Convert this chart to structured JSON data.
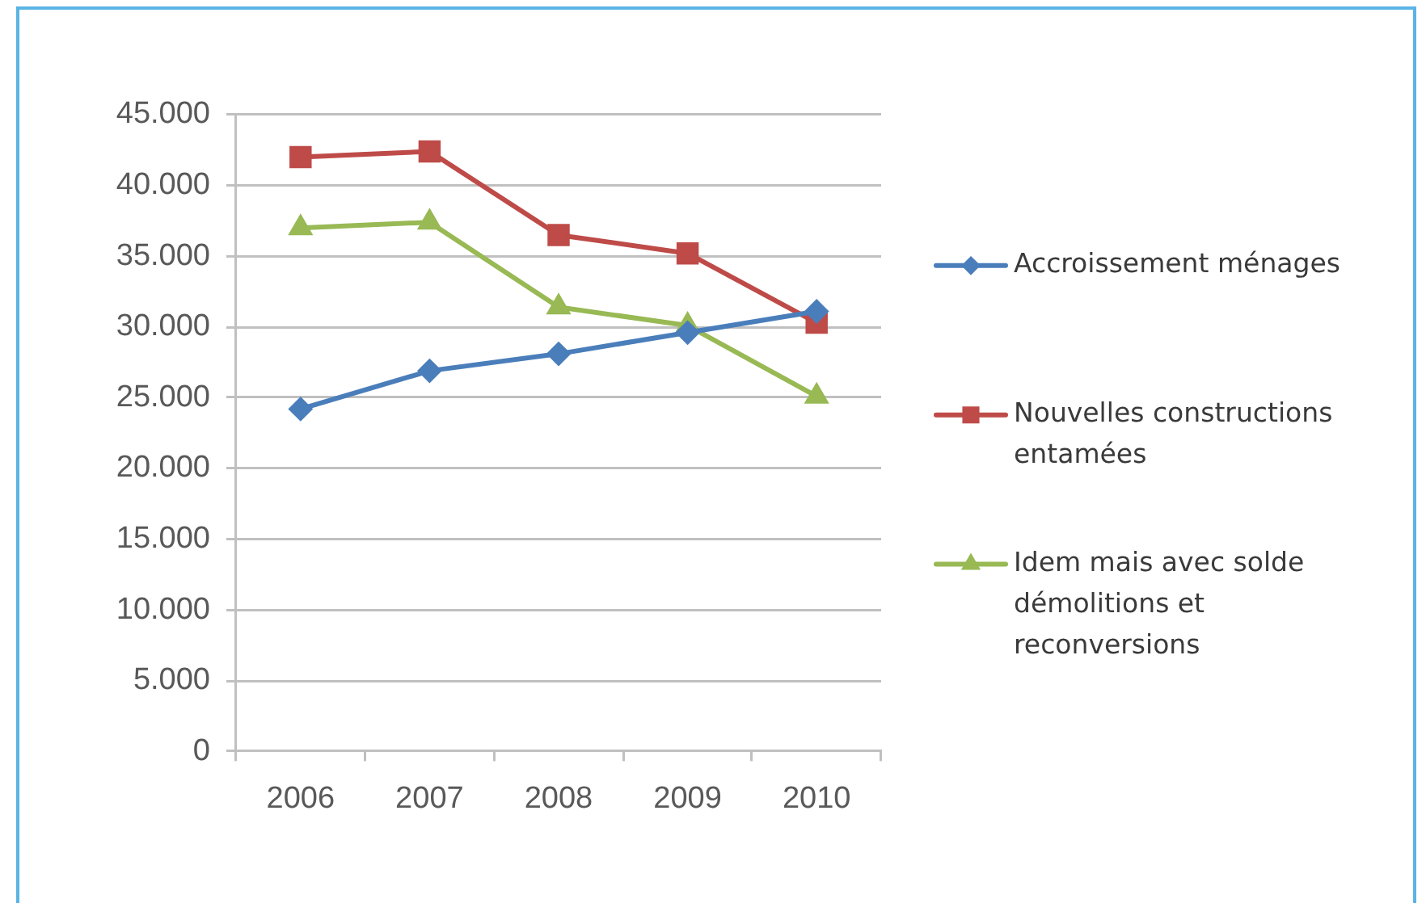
{
  "chart_data": {
    "type": "line",
    "categories": [
      "2006",
      "2007",
      "2008",
      "2009",
      "2010"
    ],
    "series": [
      {
        "name": "Accroissement ménages",
        "color": "#4a7ebb",
        "marker": "diamond",
        "values": [
          24200,
          26900,
          28100,
          29600,
          31100
        ]
      },
      {
        "name": "Nouvelles constructions entamées",
        "color": "#be4b48",
        "marker": "square",
        "values": [
          42000,
          42400,
          36500,
          35200,
          30300
        ]
      },
      {
        "name": "Idem mais avec solde démolitions et reconversions",
        "color": "#98b954",
        "marker": "triangle",
        "values": [
          37000,
          37400,
          31400,
          30100,
          25100
        ]
      }
    ],
    "ylim": [
      0,
      45000
    ],
    "yticks": [
      0,
      {
        "value": 5000,
        "label": "5.000"
      },
      {
        "value": 10000,
        "label": "10.000"
      },
      {
        "value": 15000,
        "label": "15.000"
      },
      {
        "value": 20000,
        "label": "20.000"
      },
      {
        "value": 25000,
        "label": "25.000"
      },
      {
        "value": 30000,
        "label": "30.000"
      },
      {
        "value": 35000,
        "label": "35.000"
      },
      {
        "value": 40000,
        "label": "40.000"
      },
      {
        "value": 45000,
        "label": "45.000"
      }
    ],
    "grid": "y",
    "legend": "right",
    "line_style": "solid"
  }
}
